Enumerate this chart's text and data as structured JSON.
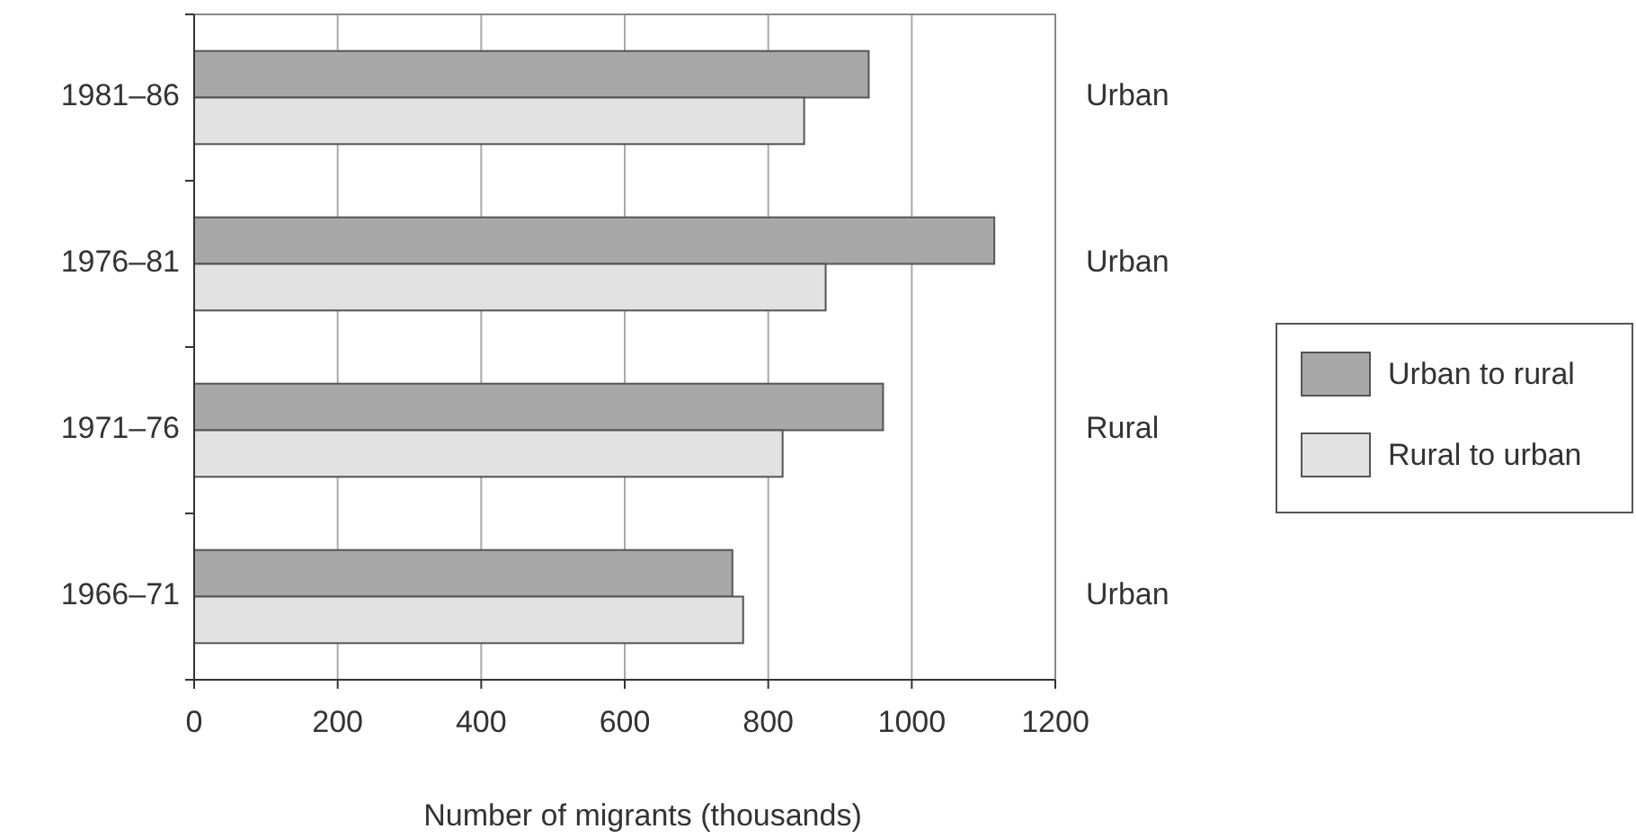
{
  "chart_data": {
    "type": "bar",
    "orientation": "horizontal",
    "xlabel": "Number of migrants (thousands)",
    "categories": [
      "1981–86",
      "1976–81",
      "1971–76",
      "1966–71"
    ],
    "series": [
      {
        "name": "Urban to rural",
        "color": "#a8a8a8",
        "values": [
          940,
          1115,
          960,
          750
        ]
      },
      {
        "name": "Rural to urban",
        "color": "#e2e2e2",
        "values": [
          850,
          880,
          820,
          765
        ]
      }
    ],
    "xlim": [
      0,
      1200
    ],
    "xticks": [
      0,
      200,
      400,
      600,
      800,
      1000,
      1200
    ],
    "grid": "x",
    "legend": "right",
    "annotations": [
      "Urban",
      "Urban",
      "Rural",
      "Urban"
    ]
  }
}
